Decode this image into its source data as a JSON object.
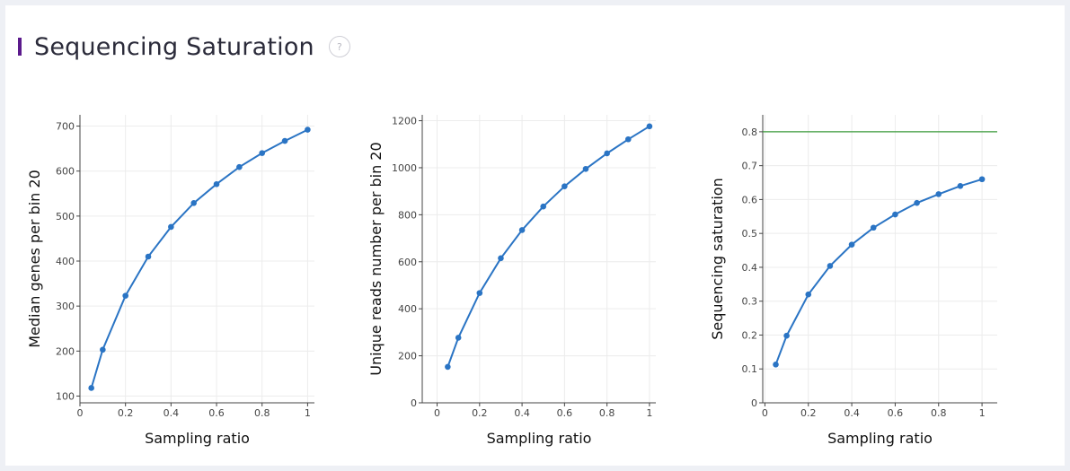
{
  "header": {
    "title": "Sequencing Saturation",
    "help_icon": "question-circle-icon",
    "help_glyph": "?",
    "accent_color": "#5b1a8c"
  },
  "colors": {
    "line": "#2a74c4",
    "reference_line": "#3a9a3a",
    "grid": "#ececec",
    "axis": "#444444"
  },
  "chart_data": [
    {
      "type": "line",
      "xlabel": "Sampling ratio",
      "ylabel": "Median genes per bin 20",
      "xlim": [
        0,
        1.03
      ],
      "ylim": [
        85,
        725
      ],
      "xticks": [
        0,
        0.2,
        0.4,
        0.6,
        0.8,
        1
      ],
      "xtick_labels": [
        "0",
        "0.2",
        "0.4",
        "0.6",
        "0.8",
        "1"
      ],
      "yticks": [
        100,
        200,
        300,
        400,
        500,
        600,
        700
      ],
      "ytick_labels": [
        "100",
        "200",
        "300",
        "400",
        "500",
        "600",
        "700"
      ],
      "series": [
        {
          "x": [
            0.05,
            0.1,
            0.2,
            0.3,
            0.4,
            0.5,
            0.6,
            0.7,
            0.8,
            0.9,
            1
          ],
          "y": [
            118,
            203,
            323,
            410,
            476,
            529,
            571,
            609,
            640,
            667,
            692
          ]
        }
      ]
    },
    {
      "type": "line",
      "xlabel": "Sampling ratio",
      "ylabel": "Unique reads number per bin 20",
      "xlim": [
        -0.07,
        1.03
      ],
      "ylim": [
        0,
        1225
      ],
      "xticks": [
        0,
        0.2,
        0.4,
        0.6,
        0.8,
        1
      ],
      "xtick_labels": [
        "0",
        "0.2",
        "0.4",
        "0.6",
        "0.8",
        "1"
      ],
      "yticks": [
        0,
        200,
        400,
        600,
        800,
        1000,
        1200
      ],
      "ytick_labels": [
        "0",
        "200",
        "400",
        "600",
        "800",
        "1000",
        "1200"
      ],
      "series": [
        {
          "x": [
            0.05,
            0.1,
            0.2,
            0.3,
            0.4,
            0.5,
            0.6,
            0.7,
            0.8,
            0.9,
            1
          ],
          "y": [
            153,
            277,
            467,
            615,
            735,
            835,
            921,
            995,
            1061,
            1121,
            1176
          ]
        }
      ]
    },
    {
      "type": "line",
      "xlabel": "Sampling ratio",
      "ylabel": "Sequencing saturation",
      "xlim": [
        -0.01,
        1.07
      ],
      "ylim": [
        0,
        0.85
      ],
      "xticks": [
        0,
        0.2,
        0.4,
        0.6,
        0.8,
        1
      ],
      "xtick_labels": [
        "0",
        "0.2",
        "0.4",
        "0.6",
        "0.8",
        "1"
      ],
      "yticks": [
        0,
        0.1,
        0.2,
        0.3,
        0.4,
        0.5,
        0.6,
        0.7,
        0.8
      ],
      "ytick_labels": [
        "0",
        "0.1",
        "0.2",
        "0.3",
        "0.4",
        "0.5",
        "0.6",
        "0.7",
        "0.8"
      ],
      "reference_y": 0.8,
      "series": [
        {
          "x": [
            0.05,
            0.1,
            0.2,
            0.3,
            0.4,
            0.5,
            0.6,
            0.7,
            0.8,
            0.9,
            1
          ],
          "y": [
            0.113,
            0.198,
            0.32,
            0.404,
            0.467,
            0.517,
            0.556,
            0.59,
            0.616,
            0.64,
            0.66
          ]
        }
      ]
    }
  ]
}
